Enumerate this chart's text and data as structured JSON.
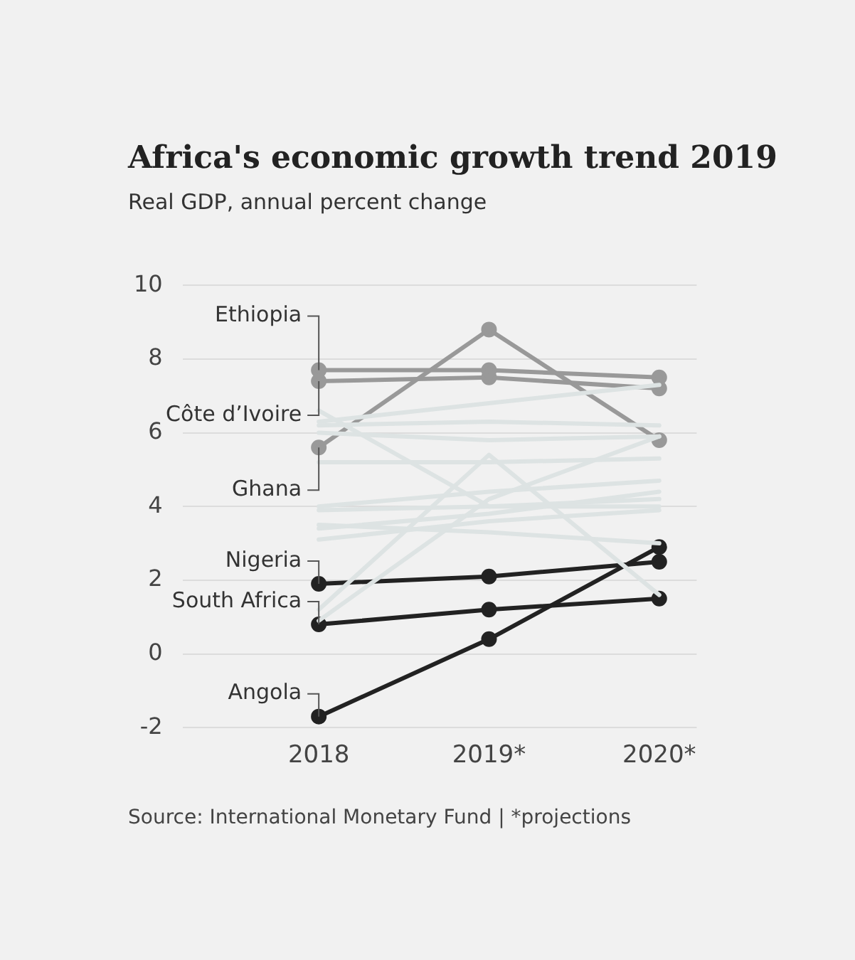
{
  "chart_data": {
    "type": "line",
    "title": "Africa's economic growth trend 2019",
    "subtitle": "Real GDP, annual percent change",
    "categories": [
      "2018",
      "2019*",
      "2020*"
    ],
    "ylim": [
      -2,
      10
    ],
    "yticks": [
      -2,
      0,
      2,
      4,
      6,
      8,
      10
    ],
    "grid": "y",
    "legend": false,
    "annotations": [
      "Source: International Monetary Fund | *projections"
    ],
    "series": [
      {
        "color": "#dde3e3",
        "marker": "none",
        "values": [
          6.3,
          6.8,
          7.3
        ]
      },
      {
        "color": "#dde3e3",
        "marker": "none",
        "values": [
          6.2,
          6.3,
          6.2
        ]
      },
      {
        "color": "#dde3e3",
        "marker": "none",
        "values": [
          6.0,
          5.8,
          5.9
        ]
      },
      {
        "color": "#dde3e3",
        "marker": "none",
        "values": [
          6.6,
          4.0,
          4.0
        ]
      },
      {
        "color": "#dde3e3",
        "marker": "none",
        "values": [
          5.2,
          5.2,
          5.3
        ]
      },
      {
        "color": "#dde3e3",
        "marker": "none",
        "values": [
          1.2,
          5.4,
          1.6
        ]
      },
      {
        "color": "#dde3e3",
        "marker": "none",
        "values": [
          0.9,
          4.2,
          5.9
        ]
      },
      {
        "color": "#dde3e3",
        "marker": "none",
        "values": [
          3.9,
          4.0,
          4.2
        ]
      },
      {
        "color": "#dde3e3",
        "marker": "none",
        "values": [
          3.5,
          3.3,
          3.0
        ]
      },
      {
        "color": "#dde3e3",
        "marker": "none",
        "values": [
          3.1,
          3.6,
          3.9
        ]
      },
      {
        "color": "#dde3e3",
        "marker": "none",
        "values": [
          4.0,
          4.4,
          4.7
        ]
      },
      {
        "color": "#dde3e3",
        "marker": "none",
        "values": [
          3.4,
          3.8,
          4.4
        ]
      },
      {
        "name": "Ethiopia",
        "color": "#999999",
        "marker": "circle",
        "values": [
          7.7,
          7.7,
          7.5
        ]
      },
      {
        "name": "Côte d’Ivoire",
        "color": "#999999",
        "marker": "circle",
        "values": [
          7.4,
          7.5,
          7.2
        ]
      },
      {
        "name": "Ghana",
        "color": "#999999",
        "marker": "circle",
        "values": [
          5.6,
          8.8,
          5.8
        ]
      },
      {
        "name": "Nigeria",
        "color": "#222222",
        "marker": "circle",
        "values": [
          1.9,
          2.1,
          2.5
        ]
      },
      {
        "name": "South Africa",
        "color": "#222222",
        "marker": "circle",
        "values": [
          0.8,
          1.2,
          1.5
        ]
      },
      {
        "name": "Angola",
        "color": "#222222",
        "marker": "circle",
        "values": [
          -1.7,
          0.4,
          2.9
        ]
      }
    ]
  }
}
